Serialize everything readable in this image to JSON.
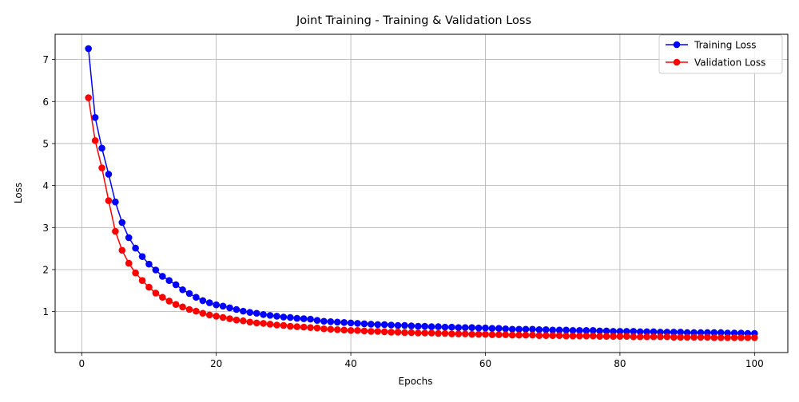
{
  "chart_data": {
    "type": "line",
    "title": "Joint Training - Training & Validation Loss",
    "xlabel": "Epochs",
    "ylabel": "Loss",
    "xlim": [
      -3.95,
      104.95
    ],
    "ylim": [
      0.025,
      7.6
    ],
    "xticks": [
      0,
      20,
      40,
      60,
      80,
      100
    ],
    "yticks": [
      1,
      2,
      3,
      4,
      5,
      6,
      7
    ],
    "grid": true,
    "legend_position": "top-right",
    "x": [
      1,
      2,
      3,
      4,
      5,
      6,
      7,
      8,
      9,
      10,
      11,
      12,
      13,
      14,
      15,
      16,
      17,
      18,
      19,
      20,
      21,
      22,
      23,
      24,
      25,
      26,
      27,
      28,
      29,
      30,
      31,
      32,
      33,
      34,
      35,
      36,
      37,
      38,
      39,
      40,
      41,
      42,
      43,
      44,
      45,
      46,
      47,
      48,
      49,
      50,
      51,
      52,
      53,
      54,
      55,
      56,
      57,
      58,
      59,
      60,
      61,
      62,
      63,
      64,
      65,
      66,
      67,
      68,
      69,
      70,
      71,
      72,
      73,
      74,
      75,
      76,
      77,
      78,
      79,
      80,
      81,
      82,
      83,
      84,
      85,
      86,
      87,
      88,
      89,
      90,
      91,
      92,
      93,
      94,
      95,
      96,
      97,
      98,
      99,
      100
    ],
    "series": [
      {
        "name": "Training Loss",
        "color": "#0000ff",
        "values": [
          7.26,
          5.62,
          4.89,
          4.27,
          3.61,
          3.12,
          2.76,
          2.51,
          2.31,
          2.13,
          1.99,
          1.84,
          1.74,
          1.64,
          1.52,
          1.43,
          1.34,
          1.26,
          1.21,
          1.16,
          1.13,
          1.09,
          1.05,
          1.01,
          0.98,
          0.96,
          0.93,
          0.91,
          0.89,
          0.87,
          0.86,
          0.84,
          0.83,
          0.82,
          0.79,
          0.77,
          0.76,
          0.75,
          0.74,
          0.73,
          0.72,
          0.71,
          0.7,
          0.69,
          0.69,
          0.68,
          0.67,
          0.67,
          0.66,
          0.65,
          0.65,
          0.64,
          0.64,
          0.63,
          0.63,
          0.62,
          0.62,
          0.62,
          0.61,
          0.61,
          0.6,
          0.6,
          0.59,
          0.58,
          0.58,
          0.58,
          0.58,
          0.57,
          0.57,
          0.56,
          0.56,
          0.56,
          0.55,
          0.55,
          0.55,
          0.55,
          0.54,
          0.54,
          0.53,
          0.53,
          0.53,
          0.53,
          0.52,
          0.52,
          0.52,
          0.51,
          0.51,
          0.51,
          0.51,
          0.5,
          0.5,
          0.5,
          0.5,
          0.5,
          0.5,
          0.49,
          0.49,
          0.49,
          0.48,
          0.48
        ]
      },
      {
        "name": "Validation Loss",
        "color": "#ff0000",
        "values": [
          6.09,
          5.07,
          4.42,
          3.64,
          2.91,
          2.46,
          2.15,
          1.92,
          1.74,
          1.58,
          1.44,
          1.34,
          1.25,
          1.17,
          1.11,
          1.05,
          1.01,
          0.96,
          0.92,
          0.89,
          0.86,
          0.83,
          0.8,
          0.78,
          0.75,
          0.73,
          0.72,
          0.7,
          0.68,
          0.67,
          0.65,
          0.64,
          0.63,
          0.62,
          0.61,
          0.59,
          0.58,
          0.57,
          0.56,
          0.55,
          0.55,
          0.54,
          0.53,
          0.53,
          0.52,
          0.51,
          0.51,
          0.5,
          0.5,
          0.49,
          0.49,
          0.49,
          0.48,
          0.48,
          0.47,
          0.47,
          0.47,
          0.46,
          0.46,
          0.46,
          0.45,
          0.45,
          0.45,
          0.44,
          0.44,
          0.44,
          0.44,
          0.43,
          0.43,
          0.43,
          0.43,
          0.42,
          0.42,
          0.42,
          0.42,
          0.42,
          0.41,
          0.41,
          0.41,
          0.41,
          0.41,
          0.4,
          0.4,
          0.4,
          0.4,
          0.4,
          0.4,
          0.39,
          0.39,
          0.39,
          0.39,
          0.39,
          0.39,
          0.38,
          0.38,
          0.38,
          0.38,
          0.38,
          0.38,
          0.38
        ]
      }
    ]
  }
}
